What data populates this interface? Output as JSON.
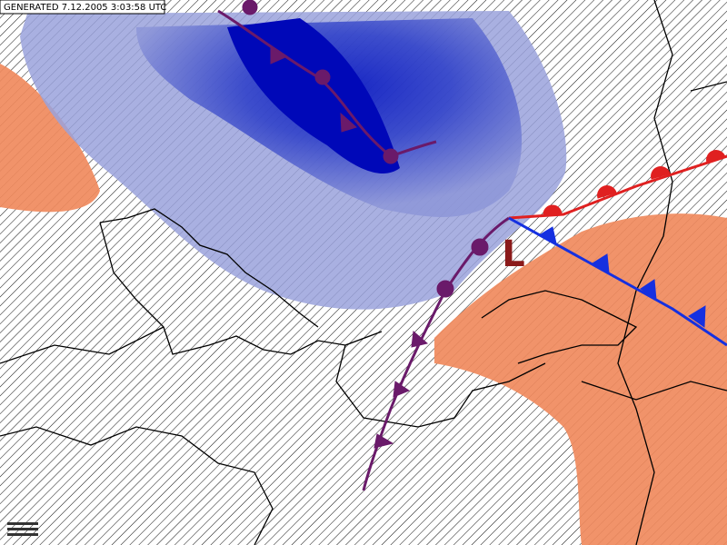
{
  "header": {
    "generated": "GENERATED 7.12.2005 3:03:58 UTC"
  },
  "map": {
    "pressure_centers": [
      {
        "label": "L"
      }
    ]
  }
}
